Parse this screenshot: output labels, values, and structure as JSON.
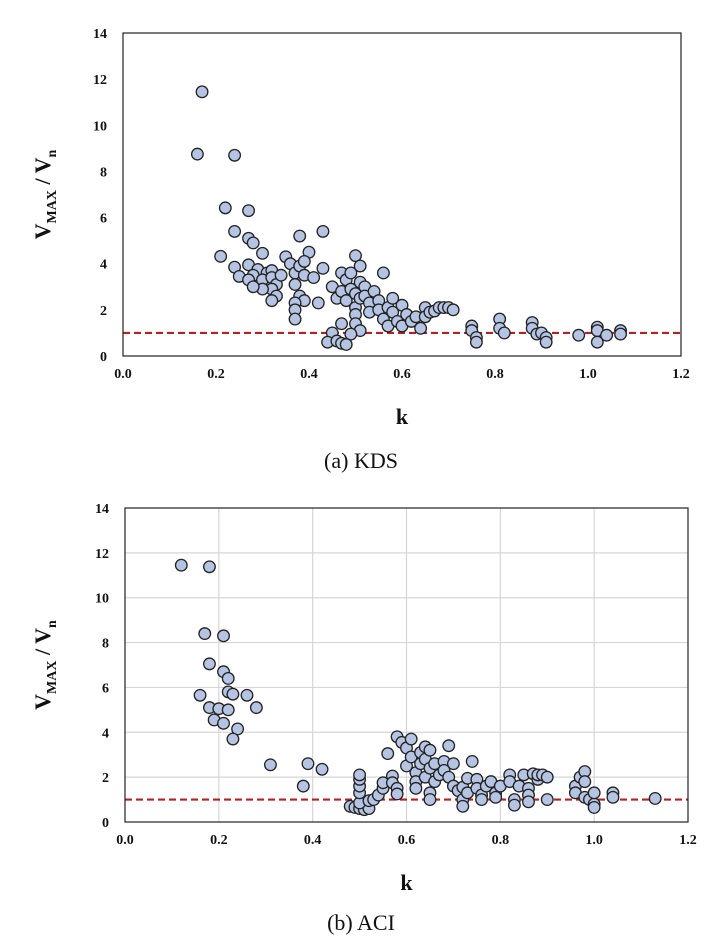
{
  "captions": [
    "(a) KDS",
    "(b) ACI"
  ],
  "chart_data": [
    {
      "type": "scatter",
      "title": "",
      "xlabel": "k",
      "ylabel_main": "V",
      "ylabel_main_sub": "MAX",
      "ylabel_den": "V",
      "ylabel_den_sub": "n",
      "xlim": [
        0,
        1.2
      ],
      "ylim": [
        0,
        14
      ],
      "xticks": [
        "0.0",
        "0.2",
        "0.4",
        "0.6",
        "0.8",
        "1.0",
        "1.2"
      ],
      "yticks": [
        "0",
        "2",
        "4",
        "6",
        "8",
        "10",
        "12",
        "14"
      ],
      "grid": false,
      "marker_fill": "#b5c4e2",
      "marker_edge": "#222222",
      "reference_line": {
        "y": 1.0,
        "style": "dashed",
        "color": "#b22222"
      },
      "points": [
        [
          0.16,
          8.75
        ],
        [
          0.17,
          11.45
        ],
        [
          0.24,
          8.7
        ],
        [
          0.22,
          6.42
        ],
        [
          0.27,
          6.3
        ],
        [
          0.24,
          5.4
        ],
        [
          0.27,
          5.1
        ],
        [
          0.28,
          4.9
        ],
        [
          0.21,
          4.32
        ],
        [
          0.3,
          4.45
        ],
        [
          0.24,
          3.85
        ],
        [
          0.27,
          3.95
        ],
        [
          0.29,
          3.75
        ],
        [
          0.25,
          3.45
        ],
        [
          0.28,
          3.5
        ],
        [
          0.31,
          3.6
        ],
        [
          0.27,
          3.3
        ],
        [
          0.3,
          3.3
        ],
        [
          0.32,
          3.7
        ],
        [
          0.32,
          3.4
        ],
        [
          0.33,
          3.1
        ],
        [
          0.32,
          2.9
        ],
        [
          0.34,
          3.5
        ],
        [
          0.33,
          2.6
        ],
        [
          0.32,
          2.4
        ],
        [
          0.3,
          2.9
        ],
        [
          0.28,
          3.0
        ],
        [
          0.35,
          4.3
        ],
        [
          0.36,
          4.0
        ],
        [
          0.37,
          3.6
        ],
        [
          0.38,
          3.9
        ],
        [
          0.39,
          3.5
        ],
        [
          0.38,
          5.2
        ],
        [
          0.4,
          4.5
        ],
        [
          0.39,
          4.1
        ],
        [
          0.41,
          3.4
        ],
        [
          0.37,
          3.1
        ],
        [
          0.38,
          2.6
        ],
        [
          0.39,
          2.4
        ],
        [
          0.37,
          2.3
        ],
        [
          0.37,
          2.0
        ],
        [
          0.37,
          1.6
        ],
        [
          0.42,
          2.3
        ],
        [
          0.43,
          5.4
        ],
        [
          0.43,
          3.8
        ],
        [
          0.45,
          3.0
        ],
        [
          0.46,
          2.5
        ],
        [
          0.47,
          3.6
        ],
        [
          0.48,
          3.3
        ],
        [
          0.47,
          2.8
        ],
        [
          0.48,
          2.4
        ],
        [
          0.49,
          3.6
        ],
        [
          0.5,
          4.35
        ],
        [
          0.49,
          2.9
        ],
        [
          0.5,
          2.7
        ],
        [
          0.5,
          2.1
        ],
        [
          0.51,
          3.9
        ],
        [
          0.51,
          3.2
        ],
        [
          0.51,
          2.5
        ],
        [
          0.5,
          1.8
        ],
        [
          0.5,
          1.4
        ],
        [
          0.51,
          1.1
        ],
        [
          0.49,
          0.95
        ],
        [
          0.52,
          3.0
        ],
        [
          0.52,
          2.6
        ],
        [
          0.53,
          2.3
        ],
        [
          0.53,
          1.9
        ],
        [
          0.54,
          2.8
        ],
        [
          0.55,
          2.4
        ],
        [
          0.55,
          2.0
        ],
        [
          0.56,
          3.6
        ],
        [
          0.56,
          1.6
        ],
        [
          0.57,
          2.1
        ],
        [
          0.57,
          1.3
        ],
        [
          0.58,
          2.5
        ],
        [
          0.58,
          1.9
        ],
        [
          0.59,
          1.5
        ],
        [
          0.6,
          2.2
        ],
        [
          0.6,
          1.3
        ],
        [
          0.61,
          1.8
        ],
        [
          0.62,
          1.5
        ],
        [
          0.63,
          1.7
        ],
        [
          0.64,
          1.2
        ],
        [
          0.65,
          2.1
        ],
        [
          0.65,
          1.7
        ],
        [
          0.66,
          1.9
        ],
        [
          0.67,
          1.95
        ],
        [
          0.68,
          2.1
        ],
        [
          0.69,
          2.1
        ],
        [
          0.7,
          2.1
        ],
        [
          0.71,
          2.0
        ],
        [
          0.45,
          1.0
        ],
        [
          0.44,
          0.6
        ],
        [
          0.46,
          0.65
        ],
        [
          0.47,
          0.55
        ],
        [
          0.48,
          0.5
        ],
        [
          0.47,
          1.4
        ],
        [
          0.75,
          1.3
        ],
        [
          0.75,
          1.1
        ],
        [
          0.76,
          0.8
        ],
        [
          0.76,
          0.6
        ],
        [
          0.81,
          1.6
        ],
        [
          0.81,
          1.2
        ],
        [
          0.82,
          1.0
        ],
        [
          0.88,
          1.45
        ],
        [
          0.88,
          1.2
        ],
        [
          0.89,
          0.95
        ],
        [
          0.9,
          1.0
        ],
        [
          0.91,
          0.8
        ],
        [
          0.91,
          0.6
        ],
        [
          0.98,
          0.9
        ],
        [
          1.02,
          1.25
        ],
        [
          1.02,
          1.1
        ],
        [
          1.02,
          0.6
        ],
        [
          1.04,
          0.9
        ],
        [
          1.07,
          1.1
        ],
        [
          1.07,
          0.95
        ]
      ]
    },
    {
      "type": "scatter",
      "title": "",
      "xlabel": "k",
      "ylabel_main": "V",
      "ylabel_main_sub": "MAX",
      "ylabel_den": "V",
      "ylabel_den_sub": "n",
      "xlim": [
        0,
        1.2
      ],
      "ylim": [
        0,
        14
      ],
      "xticks": [
        "0.0",
        "0.2",
        "0.4",
        "0.6",
        "0.8",
        "1.0",
        "1.2"
      ],
      "yticks": [
        "0",
        "2",
        "4",
        "6",
        "8",
        "10",
        "12",
        "14"
      ],
      "grid": true,
      "marker_fill": "#b5c4e2",
      "marker_edge": "#222222",
      "reference_line": {
        "y": 1.0,
        "style": "dashed",
        "color": "#b22222"
      },
      "points": [
        [
          0.12,
          11.45
        ],
        [
          0.18,
          11.38
        ],
        [
          0.17,
          8.4
        ],
        [
          0.21,
          8.3
        ],
        [
          0.18,
          7.05
        ],
        [
          0.21,
          6.7
        ],
        [
          0.22,
          6.4
        ],
        [
          0.16,
          5.65
        ],
        [
          0.22,
          5.8
        ],
        [
          0.23,
          5.7
        ],
        [
          0.26,
          5.65
        ],
        [
          0.18,
          5.1
        ],
        [
          0.2,
          5.05
        ],
        [
          0.22,
          5.0
        ],
        [
          0.28,
          5.1
        ],
        [
          0.19,
          4.55
        ],
        [
          0.21,
          4.4
        ],
        [
          0.24,
          4.15
        ],
        [
          0.23,
          3.7
        ],
        [
          0.31,
          2.55
        ],
        [
          0.39,
          2.6
        ],
        [
          0.42,
          2.35
        ],
        [
          0.38,
          1.6
        ],
        [
          0.48,
          0.7
        ],
        [
          0.49,
          0.65
        ],
        [
          0.5,
          0.6
        ],
        [
          0.51,
          0.55
        ],
        [
          0.52,
          0.6
        ],
        [
          0.5,
          0.85
        ],
        [
          0.52,
          0.95
        ],
        [
          0.53,
          1.0
        ],
        [
          0.5,
          1.3
        ],
        [
          0.5,
          1.6
        ],
        [
          0.5,
          1.9
        ],
        [
          0.5,
          2.1
        ],
        [
          0.54,
          1.2
        ],
        [
          0.55,
          1.5
        ],
        [
          0.55,
          1.75
        ],
        [
          0.56,
          3.05
        ],
        [
          0.57,
          2.05
        ],
        [
          0.57,
          1.75
        ],
        [
          0.58,
          1.5
        ],
        [
          0.58,
          1.25
        ],
        [
          0.58,
          3.8
        ],
        [
          0.59,
          3.55
        ],
        [
          0.6,
          3.3
        ],
        [
          0.6,
          2.5
        ],
        [
          0.61,
          3.7
        ],
        [
          0.61,
          2.9
        ],
        [
          0.62,
          2.2
        ],
        [
          0.62,
          1.8
        ],
        [
          0.62,
          1.5
        ],
        [
          0.63,
          3.1
        ],
        [
          0.63,
          2.6
        ],
        [
          0.64,
          3.35
        ],
        [
          0.64,
          2.8
        ],
        [
          0.64,
          2.0
        ],
        [
          0.65,
          3.2
        ],
        [
          0.65,
          2.4
        ],
        [
          0.65,
          1.3
        ],
        [
          0.65,
          1.0
        ],
        [
          0.66,
          2.6
        ],
        [
          0.66,
          1.8
        ],
        [
          0.67,
          2.1
        ],
        [
          0.68,
          2.7
        ],
        [
          0.68,
          2.3
        ],
        [
          0.69,
          3.4
        ],
        [
          0.69,
          2.0
        ],
        [
          0.7,
          2.6
        ],
        [
          0.7,
          1.6
        ],
        [
          0.71,
          1.4
        ],
        [
          0.72,
          1.55
        ],
        [
          0.72,
          1.0
        ],
        [
          0.72,
          0.7
        ],
        [
          0.73,
          1.95
        ],
        [
          0.73,
          1.3
        ],
        [
          0.74,
          2.7
        ],
        [
          0.75,
          1.9
        ],
        [
          0.75,
          1.5
        ],
        [
          0.76,
          1.2
        ],
        [
          0.76,
          1.0
        ],
        [
          0.77,
          1.6
        ],
        [
          0.78,
          1.8
        ],
        [
          0.79,
          1.3
        ],
        [
          0.79,
          1.1
        ],
        [
          0.8,
          1.6
        ],
        [
          0.82,
          2.1
        ],
        [
          0.82,
          1.8
        ],
        [
          0.83,
          1.0
        ],
        [
          0.83,
          0.75
        ],
        [
          0.84,
          1.6
        ],
        [
          0.85,
          2.1
        ],
        [
          0.86,
          1.5
        ],
        [
          0.86,
          1.2
        ],
        [
          0.86,
          0.9
        ],
        [
          0.87,
          2.15
        ],
        [
          0.88,
          1.9
        ],
        [
          0.88,
          2.1
        ],
        [
          0.89,
          2.1
        ],
        [
          0.9,
          2.0
        ],
        [
          0.9,
          1.0
        ],
        [
          0.96,
          1.6
        ],
        [
          0.96,
          1.3
        ],
        [
          0.97,
          2.0
        ],
        [
          0.98,
          2.25
        ],
        [
          0.98,
          1.8
        ],
        [
          0.98,
          1.1
        ],
        [
          0.99,
          1.0
        ],
        [
          1.0,
          0.8
        ],
        [
          1.0,
          0.65
        ],
        [
          1.0,
          1.3
        ],
        [
          1.04,
          1.3
        ],
        [
          1.04,
          1.1
        ],
        [
          1.13,
          1.05
        ]
      ]
    }
  ]
}
